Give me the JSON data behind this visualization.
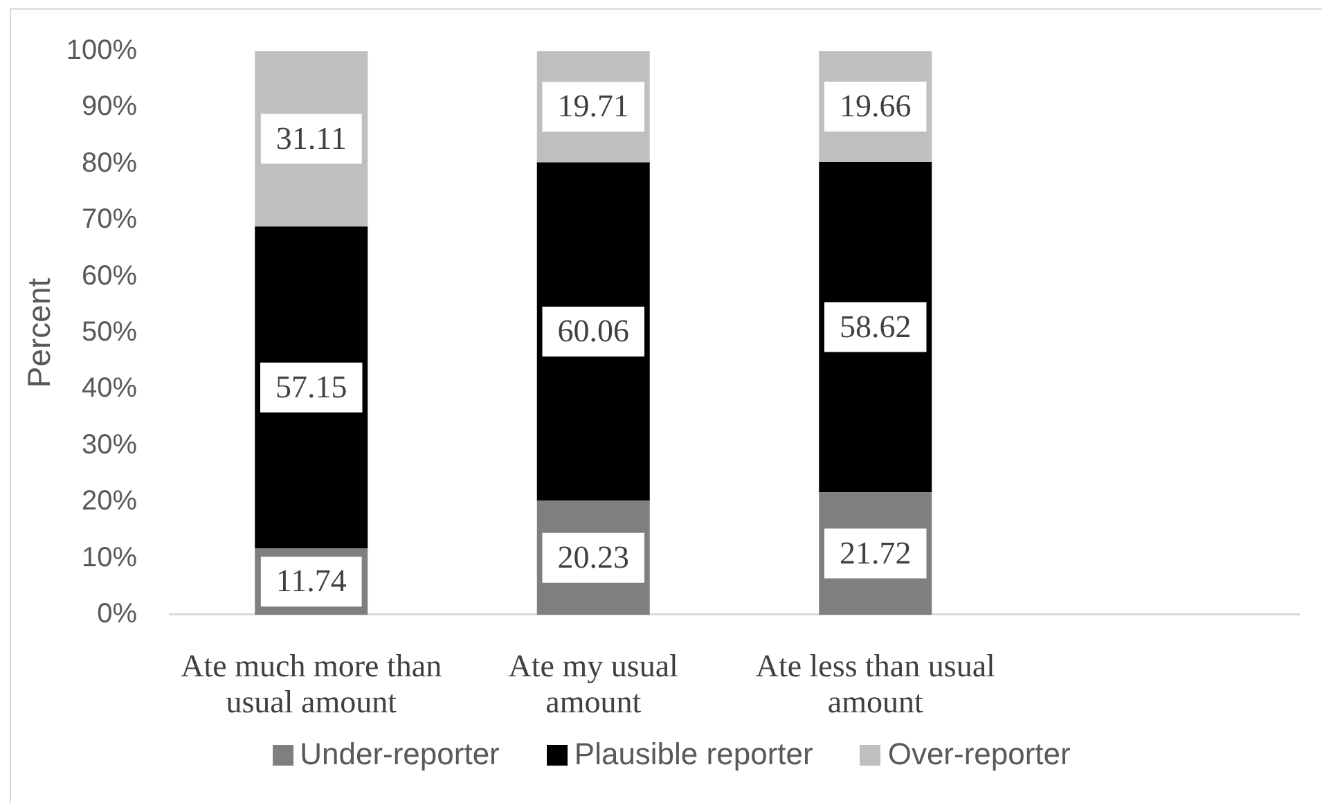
{
  "chart_data": {
    "type": "bar",
    "stacked": true,
    "ylabel": "Percent",
    "categories": [
      "Ate much more than usual amount",
      "Ate my usual amount",
      "Ate less than usual amount",
      null
    ],
    "series": [
      {
        "name": "Under-reporter",
        "color": "#7f7f7f",
        "values": [
          11.74,
          20.23,
          21.72,
          null
        ]
      },
      {
        "name": "Plausible reporter",
        "color": "#000000",
        "values": [
          57.15,
          60.06,
          58.62,
          null
        ]
      },
      {
        "name": "Over-reporter",
        "color": "#bfbfbf",
        "values": [
          31.11,
          19.71,
          19.66,
          null
        ]
      }
    ],
    "ylim": [
      0,
      100
    ],
    "yticks": [
      {
        "value": 0,
        "label": "0%"
      },
      {
        "value": 10,
        "label": "10%"
      },
      {
        "value": 20,
        "label": "20%"
      },
      {
        "value": 30,
        "label": "30%"
      },
      {
        "value": 40,
        "label": "40%"
      },
      {
        "value": 50,
        "label": "50%"
      },
      {
        "value": 60,
        "label": "60%"
      },
      {
        "value": 70,
        "label": "70%"
      },
      {
        "value": 80,
        "label": "80%"
      },
      {
        "value": 90,
        "label": "90%"
      },
      {
        "value": 100,
        "label": "100%"
      }
    ],
    "data_labels": true,
    "legend": "bottom"
  }
}
